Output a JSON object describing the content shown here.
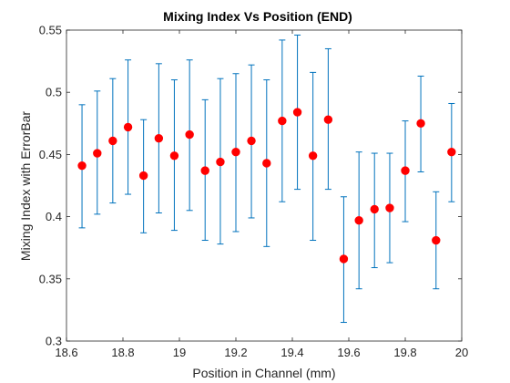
{
  "chart_data": {
    "type": "scatter",
    "title": "Mixing Index Vs Position (END)",
    "xlabel": "Position in Channel (mm)",
    "ylabel": "Mixing Index with ErrorBar",
    "xlim": [
      18.6,
      20
    ],
    "ylim": [
      0.3,
      0.55
    ],
    "xticks": [
      18.6,
      18.8,
      19,
      19.2,
      19.4,
      19.6,
      19.8,
      20
    ],
    "xtick_labels": [
      "18.6",
      "18.8",
      "19",
      "19.2",
      "19.4",
      "19.6",
      "19.8",
      "20"
    ],
    "yticks": [
      0.3,
      0.35,
      0.4,
      0.45,
      0.5,
      0.55
    ],
    "ytick_labels": [
      "0.3",
      "0.35",
      "0.4",
      "0.45",
      "0.5",
      "0.55"
    ],
    "grid": false,
    "marker_color": "#ff0000",
    "errorbar_color": "#0072bd",
    "points": [
      {
        "x": 18.655,
        "y": 0.441,
        "lower": 0.391,
        "upper": 0.49
      },
      {
        "x": 18.709,
        "y": 0.451,
        "lower": 0.402,
        "upper": 0.501
      },
      {
        "x": 18.764,
        "y": 0.461,
        "lower": 0.411,
        "upper": 0.511
      },
      {
        "x": 18.818,
        "y": 0.472,
        "lower": 0.418,
        "upper": 0.526
      },
      {
        "x": 18.873,
        "y": 0.433,
        "lower": 0.387,
        "upper": 0.478
      },
      {
        "x": 18.927,
        "y": 0.463,
        "lower": 0.403,
        "upper": 0.523
      },
      {
        "x": 18.982,
        "y": 0.449,
        "lower": 0.389,
        "upper": 0.51
      },
      {
        "x": 19.036,
        "y": 0.466,
        "lower": 0.405,
        "upper": 0.526
      },
      {
        "x": 19.091,
        "y": 0.437,
        "lower": 0.381,
        "upper": 0.494
      },
      {
        "x": 19.145,
        "y": 0.444,
        "lower": 0.378,
        "upper": 0.511
      },
      {
        "x": 19.2,
        "y": 0.452,
        "lower": 0.388,
        "upper": 0.515
      },
      {
        "x": 19.255,
        "y": 0.461,
        "lower": 0.399,
        "upper": 0.522
      },
      {
        "x": 19.309,
        "y": 0.443,
        "lower": 0.376,
        "upper": 0.51
      },
      {
        "x": 19.364,
        "y": 0.477,
        "lower": 0.412,
        "upper": 0.542
      },
      {
        "x": 19.418,
        "y": 0.484,
        "lower": 0.422,
        "upper": 0.546
      },
      {
        "x": 19.473,
        "y": 0.449,
        "lower": 0.381,
        "upper": 0.516
      },
      {
        "x": 19.527,
        "y": 0.478,
        "lower": 0.422,
        "upper": 0.535
      },
      {
        "x": 19.582,
        "y": 0.366,
        "lower": 0.315,
        "upper": 0.416
      },
      {
        "x": 19.636,
        "y": 0.397,
        "lower": 0.342,
        "upper": 0.452
      },
      {
        "x": 19.691,
        "y": 0.406,
        "lower": 0.359,
        "upper": 0.451
      },
      {
        "x": 19.745,
        "y": 0.407,
        "lower": 0.363,
        "upper": 0.451
      },
      {
        "x": 19.8,
        "y": 0.437,
        "lower": 0.396,
        "upper": 0.477
      },
      {
        "x": 19.855,
        "y": 0.475,
        "lower": 0.436,
        "upper": 0.513
      },
      {
        "x": 19.909,
        "y": 0.381,
        "lower": 0.342,
        "upper": 0.42
      },
      {
        "x": 19.964,
        "y": 0.452,
        "lower": 0.412,
        "upper": 0.491
      }
    ]
  }
}
